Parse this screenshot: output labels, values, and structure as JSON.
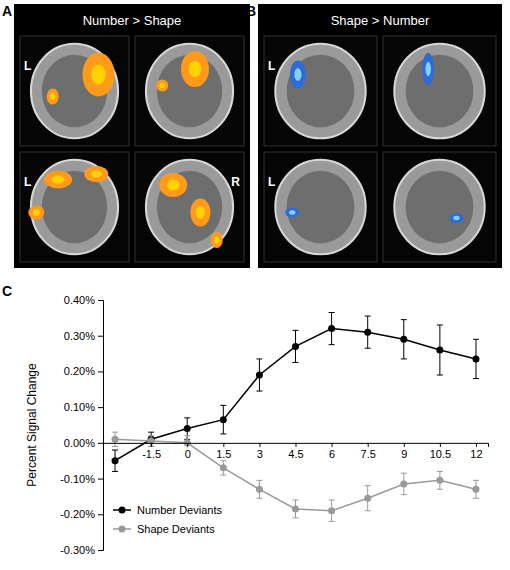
{
  "panels": [
    {
      "letter": "A",
      "title": "Number > Shape",
      "labels": [
        "L",
        "L",
        "R"
      ]
    },
    {
      "letter": "B",
      "title": "Shape > Number",
      "labels": [
        "L",
        "L"
      ]
    },
    {
      "letter": "C"
    }
  ],
  "chart_data": {
    "type": "line",
    "y_label": "Percent Signal Change",
    "x": [
      -3,
      -1.5,
      0,
      1.5,
      3,
      4.5,
      6,
      7.5,
      9,
      10.5,
      12
    ],
    "series": [
      {
        "name": "Number Deviants",
        "color": "#000000",
        "marker": "circle",
        "values": [
          -0.05,
          0.01,
          0.04,
          0.065,
          0.19,
          0.27,
          0.32,
          0.31,
          0.29,
          0.26,
          0.235
        ],
        "errors": [
          0.03,
          0.02,
          0.03,
          0.04,
          0.045,
          0.045,
          0.045,
          0.045,
          0.055,
          0.07,
          0.055
        ]
      },
      {
        "name": "Shape Deviants",
        "color": "#999999",
        "marker": "circle",
        "values": [
          0.01,
          0.005,
          0.0,
          -0.07,
          -0.13,
          -0.185,
          -0.19,
          -0.155,
          -0.115,
          -0.105,
          -0.13
        ],
        "errors": [
          0.02,
          0.015,
          0.02,
          0.02,
          0.025,
          0.025,
          0.03,
          0.035,
          0.03,
          0.025,
          0.025
        ]
      }
    ],
    "xlim": [
      -3.5,
      12.5
    ],
    "xticks": [
      -1.5,
      0,
      1.5,
      3,
      4.5,
      6,
      7.5,
      9,
      10.5,
      12
    ],
    "ylim": [
      -0.3,
      0.4
    ],
    "yticks": [
      {
        "value": -0.3,
        "label": "-0.30%"
      },
      {
        "value": -0.2,
        "label": "-0.20%"
      },
      {
        "value": -0.1,
        "label": "-0.10%"
      },
      {
        "value": 0,
        "label": "0.00%"
      },
      {
        "value": 0.1,
        "label": "0.10%"
      },
      {
        "value": 0.2,
        "label": "0.20%"
      },
      {
        "value": 0.3,
        "label": "0.30%"
      },
      {
        "value": 0.4,
        "label": "0.40%"
      }
    ],
    "legend": "lower left",
    "grid": false
  }
}
